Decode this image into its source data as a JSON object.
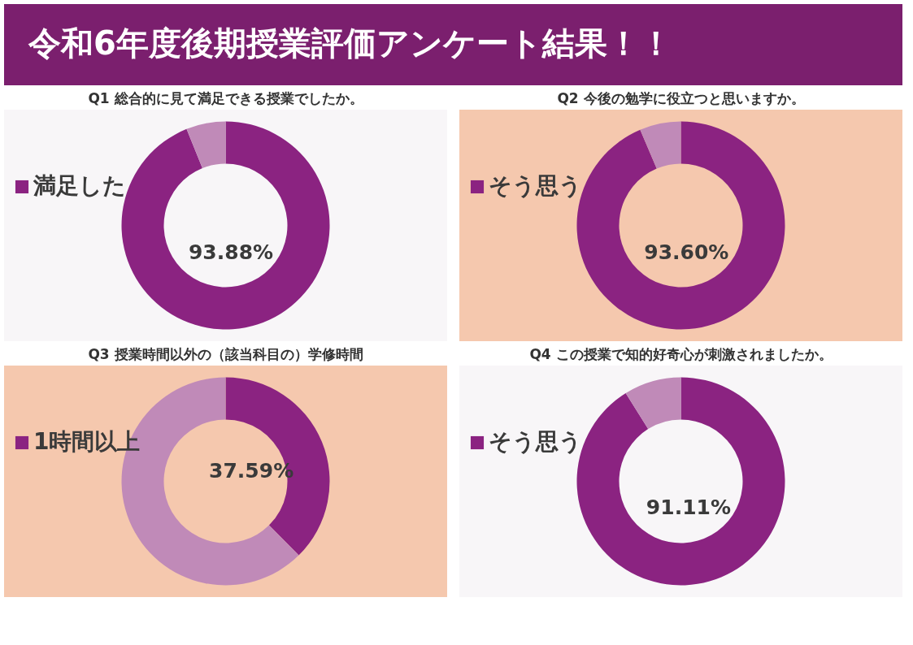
{
  "chart_data": [
    {
      "type": "other",
      "title": "令和6年度後期授業評価アンケート結果！！"
    },
    {
      "type": "donut",
      "title": "Q1 総合的に見て満足できる授業でしたか。",
      "categories": [
        "満足した",
        null
      ],
      "values": [
        93.88,
        6.12
      ],
      "colors": [
        "#8b2381",
        "#c08ab8"
      ],
      "value_labels": [
        "93.88%",
        null
      ]
    },
    {
      "type": "donut",
      "title": "Q2 今後の勉学に役立つと思いますか。",
      "categories": [
        "そう思う",
        null
      ],
      "values": [
        93.6,
        6.4
      ],
      "colors": [
        "#8b2381",
        "#c08ab8"
      ],
      "value_labels": [
        "93.60%",
        null
      ]
    },
    {
      "type": "donut",
      "title": "Q3 授業時間以外の（該当科目の）学修時間",
      "categories": [
        "1時間以上",
        null
      ],
      "values": [
        37.59,
        62.41
      ],
      "colors": [
        "#8b2381",
        "#c08ab8"
      ],
      "value_labels": [
        "37.59%",
        null
      ]
    },
    {
      "type": "donut",
      "title": "Q4 この授業で知的好奇心が刺激されましたか。",
      "categories": [
        "そう思う",
        null
      ],
      "values": [
        91.11,
        8.89
      ],
      "colors": [
        "#8b2381",
        "#c08ab8"
      ],
      "value_labels": [
        "91.11%",
        null
      ]
    }
  ]
}
